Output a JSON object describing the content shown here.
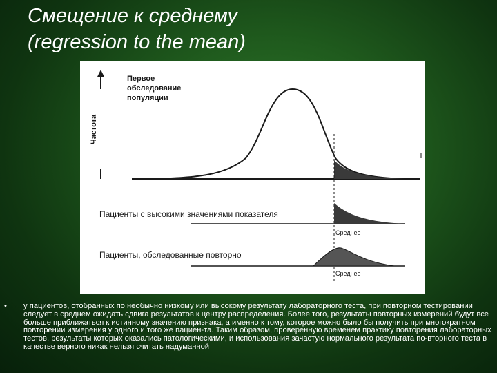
{
  "slide": {
    "title_line1": "Смещение к среднему",
    "title_line2": "(regression to the mean)"
  },
  "figure": {
    "first_exam_line1": "Первое",
    "first_exam_line2": "обследование",
    "first_exam_line3": "популяции",
    "y_axis_label": "Частота",
    "high_patients_label": "Пациенты с высокими значениями показателя",
    "retested_label": "Пациенты, обследованные повторно",
    "mean_label_1": "Среднее",
    "mean_label_2": "Среднее"
  },
  "body": {
    "bullet_symbol": "•",
    "bullet_text": "у пациентов, отобранных по необычно низкому или высокому результату лабораторного теста, при повторном тестировании следует в среднем ожидать сдвига результатов к центру распределения. Более того, результаты повторных измерений будут все больше приближаться к истинному значению признака, а именно к тому, которое можно было бы получить при многократном повторении измерения у одного и того же пациен-та. Таким образом, проверенную временем практику повторения лабораторных тестов, результаты которых оказались патологическими, и использования зачастую нормального результата по-вторного теста в качестве верного никак нельзя считать надуманной"
  },
  "colors": {
    "background": "#1f5a1d",
    "text": "#ffffff",
    "figure_bg": "#ffffff",
    "ink": "#1a1a1a"
  }
}
